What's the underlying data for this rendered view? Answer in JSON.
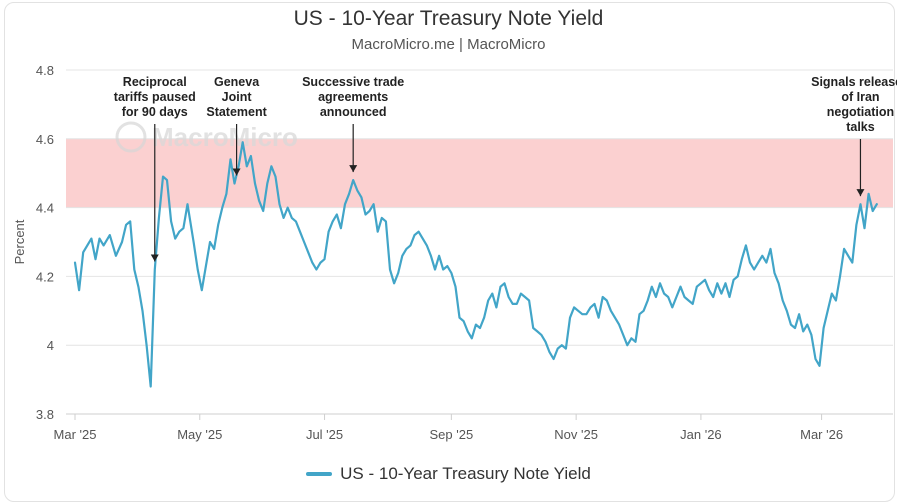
{
  "chart_data": {
    "type": "line",
    "title": "US - 10-Year Treasury Note Yield",
    "subtitle": "MacroMicro.me | MacroMicro",
    "watermark": "MacroMicro",
    "ylabel": "Percent",
    "xlabel": "",
    "ylim": [
      3.8,
      4.8
    ],
    "y_ticks": [
      "3.8",
      "4",
      "4.2",
      "4.4",
      "4.6",
      "4.8"
    ],
    "x_ticks": [
      {
        "label": "Mar '25",
        "date": "2025-03-01"
      },
      {
        "label": "May '25",
        "date": "2025-05-01"
      },
      {
        "label": "Jul '25",
        "date": "2025-07-01"
      },
      {
        "label": "Sep '25",
        "date": "2025-09-01"
      },
      {
        "label": "Nov '25",
        "date": "2025-11-01"
      },
      {
        "label": "Jan '26",
        "date": "2026-01-01"
      },
      {
        "label": "Mar '26",
        "date": "2026-03-01"
      }
    ],
    "xlim": [
      "2025-03-01",
      "2026-04-01"
    ],
    "shaded_band": {
      "from": 4.4,
      "to": 4.6,
      "color": "#fbd0d0"
    },
    "grid": true,
    "legend_position": "bottom",
    "series": [
      {
        "name": "US - 10-Year Treasury Note Yield",
        "color": "#42a5c8",
        "points": [
          [
            "2025-03-01",
            4.24
          ],
          [
            "2025-03-03",
            4.16
          ],
          [
            "2025-03-05",
            4.27
          ],
          [
            "2025-03-07",
            4.29
          ],
          [
            "2025-03-09",
            4.31
          ],
          [
            "2025-03-11",
            4.25
          ],
          [
            "2025-03-13",
            4.31
          ],
          [
            "2025-03-15",
            4.29
          ],
          [
            "2025-03-18",
            4.32
          ],
          [
            "2025-03-21",
            4.26
          ],
          [
            "2025-03-24",
            4.3
          ],
          [
            "2025-03-26",
            4.35
          ],
          [
            "2025-03-28",
            4.36
          ],
          [
            "2025-03-30",
            4.22
          ],
          [
            "2025-04-01",
            4.17
          ],
          [
            "2025-04-03",
            4.1
          ],
          [
            "2025-04-05",
            4.0
          ],
          [
            "2025-04-07",
            3.88
          ],
          [
            "2025-04-09",
            4.22
          ],
          [
            "2025-04-11",
            4.37
          ],
          [
            "2025-04-13",
            4.49
          ],
          [
            "2025-04-15",
            4.48
          ],
          [
            "2025-04-17",
            4.36
          ],
          [
            "2025-04-19",
            4.31
          ],
          [
            "2025-04-21",
            4.33
          ],
          [
            "2025-04-23",
            4.34
          ],
          [
            "2025-04-25",
            4.41
          ],
          [
            "2025-04-28",
            4.3
          ],
          [
            "2025-04-30",
            4.22
          ],
          [
            "2025-05-02",
            4.16
          ],
          [
            "2025-05-04",
            4.23
          ],
          [
            "2025-05-06",
            4.3
          ],
          [
            "2025-05-08",
            4.28
          ],
          [
            "2025-05-10",
            4.35
          ],
          [
            "2025-05-12",
            4.4
          ],
          [
            "2025-05-14",
            4.44
          ],
          [
            "2025-05-16",
            4.54
          ],
          [
            "2025-05-18",
            4.47
          ],
          [
            "2025-05-20",
            4.52
          ],
          [
            "2025-05-22",
            4.59
          ],
          [
            "2025-05-24",
            4.52
          ],
          [
            "2025-05-26",
            4.55
          ],
          [
            "2025-05-28",
            4.47
          ],
          [
            "2025-05-30",
            4.42
          ],
          [
            "2025-06-01",
            4.39
          ],
          [
            "2025-06-03",
            4.47
          ],
          [
            "2025-06-05",
            4.52
          ],
          [
            "2025-06-07",
            4.49
          ],
          [
            "2025-06-09",
            4.41
          ],
          [
            "2025-06-11",
            4.37
          ],
          [
            "2025-06-13",
            4.4
          ],
          [
            "2025-06-15",
            4.37
          ],
          [
            "2025-06-17",
            4.36
          ],
          [
            "2025-06-19",
            4.33
          ],
          [
            "2025-06-21",
            4.3
          ],
          [
            "2025-06-23",
            4.27
          ],
          [
            "2025-06-25",
            4.24
          ],
          [
            "2025-06-27",
            4.22
          ],
          [
            "2025-06-29",
            4.24
          ],
          [
            "2025-07-01",
            4.25
          ],
          [
            "2025-07-03",
            4.33
          ],
          [
            "2025-07-05",
            4.36
          ],
          [
            "2025-07-07",
            4.38
          ],
          [
            "2025-07-09",
            4.34
          ],
          [
            "2025-07-11",
            4.41
          ],
          [
            "2025-07-13",
            4.44
          ],
          [
            "2025-07-15",
            4.48
          ],
          [
            "2025-07-17",
            4.45
          ],
          [
            "2025-07-19",
            4.43
          ],
          [
            "2025-07-21",
            4.38
          ],
          [
            "2025-07-23",
            4.39
          ],
          [
            "2025-07-25",
            4.41
          ],
          [
            "2025-07-27",
            4.33
          ],
          [
            "2025-07-29",
            4.37
          ],
          [
            "2025-07-31",
            4.36
          ],
          [
            "2025-08-02",
            4.22
          ],
          [
            "2025-08-04",
            4.18
          ],
          [
            "2025-08-06",
            4.21
          ],
          [
            "2025-08-08",
            4.26
          ],
          [
            "2025-08-10",
            4.28
          ],
          [
            "2025-08-12",
            4.29
          ],
          [
            "2025-08-14",
            4.32
          ],
          [
            "2025-08-16",
            4.33
          ],
          [
            "2025-08-18",
            4.31
          ],
          [
            "2025-08-20",
            4.29
          ],
          [
            "2025-08-22",
            4.26
          ],
          [
            "2025-08-24",
            4.22
          ],
          [
            "2025-08-26",
            4.26
          ],
          [
            "2025-08-28",
            4.22
          ],
          [
            "2025-08-30",
            4.23
          ],
          [
            "2025-09-01",
            4.21
          ],
          [
            "2025-09-03",
            4.17
          ],
          [
            "2025-09-05",
            4.08
          ],
          [
            "2025-09-07",
            4.07
          ],
          [
            "2025-09-09",
            4.04
          ],
          [
            "2025-09-11",
            4.02
          ],
          [
            "2025-09-13",
            4.06
          ],
          [
            "2025-09-15",
            4.05
          ],
          [
            "2025-09-17",
            4.08
          ],
          [
            "2025-09-19",
            4.13
          ],
          [
            "2025-09-21",
            4.15
          ],
          [
            "2025-09-23",
            4.11
          ],
          [
            "2025-09-25",
            4.17
          ],
          [
            "2025-09-27",
            4.18
          ],
          [
            "2025-09-29",
            4.14
          ],
          [
            "2025-10-01",
            4.12
          ],
          [
            "2025-10-03",
            4.12
          ],
          [
            "2025-10-05",
            4.15
          ],
          [
            "2025-10-07",
            4.14
          ],
          [
            "2025-10-09",
            4.13
          ],
          [
            "2025-10-11",
            4.05
          ],
          [
            "2025-10-13",
            4.04
          ],
          [
            "2025-10-15",
            4.03
          ],
          [
            "2025-10-17",
            4.01
          ],
          [
            "2025-10-19",
            3.98
          ],
          [
            "2025-10-21",
            3.96
          ],
          [
            "2025-10-23",
            3.99
          ],
          [
            "2025-10-25",
            4.0
          ],
          [
            "2025-10-27",
            3.99
          ],
          [
            "2025-10-29",
            4.08
          ],
          [
            "2025-10-31",
            4.11
          ],
          [
            "2025-11-02",
            4.1
          ],
          [
            "2025-11-04",
            4.09
          ],
          [
            "2025-11-06",
            4.09
          ],
          [
            "2025-11-08",
            4.11
          ],
          [
            "2025-11-10",
            4.12
          ],
          [
            "2025-11-12",
            4.08
          ],
          [
            "2025-11-14",
            4.14
          ],
          [
            "2025-11-16",
            4.13
          ],
          [
            "2025-11-18",
            4.1
          ],
          [
            "2025-11-20",
            4.08
          ],
          [
            "2025-11-22",
            4.06
          ],
          [
            "2025-11-24",
            4.03
          ],
          [
            "2025-11-26",
            4.0
          ],
          [
            "2025-11-28",
            4.02
          ],
          [
            "2025-11-30",
            4.01
          ],
          [
            "2025-12-02",
            4.09
          ],
          [
            "2025-12-04",
            4.1
          ],
          [
            "2025-12-06",
            4.13
          ],
          [
            "2025-12-08",
            4.17
          ],
          [
            "2025-12-10",
            4.14
          ],
          [
            "2025-12-12",
            4.18
          ],
          [
            "2025-12-14",
            4.15
          ],
          [
            "2025-12-16",
            4.14
          ],
          [
            "2025-12-18",
            4.11
          ],
          [
            "2025-12-20",
            4.14
          ],
          [
            "2025-12-22",
            4.17
          ],
          [
            "2025-12-24",
            4.14
          ],
          [
            "2025-12-26",
            4.13
          ],
          [
            "2025-12-28",
            4.12
          ],
          [
            "2025-12-30",
            4.17
          ],
          [
            "2026-01-01",
            4.18
          ],
          [
            "2026-01-03",
            4.19
          ],
          [
            "2026-01-05",
            4.16
          ],
          [
            "2026-01-07",
            4.14
          ],
          [
            "2026-01-09",
            4.18
          ],
          [
            "2026-01-11",
            4.15
          ],
          [
            "2026-01-13",
            4.18
          ],
          [
            "2026-01-15",
            4.14
          ],
          [
            "2026-01-17",
            4.19
          ],
          [
            "2026-01-19",
            4.2
          ],
          [
            "2026-01-21",
            4.25
          ],
          [
            "2026-01-23",
            4.29
          ],
          [
            "2026-01-25",
            4.24
          ],
          [
            "2026-01-27",
            4.22
          ],
          [
            "2026-01-29",
            4.24
          ],
          [
            "2026-01-31",
            4.26
          ],
          [
            "2026-02-02",
            4.24
          ],
          [
            "2026-02-04",
            4.28
          ],
          [
            "2026-02-06",
            4.21
          ],
          [
            "2026-02-08",
            4.18
          ],
          [
            "2026-02-10",
            4.13
          ],
          [
            "2026-02-12",
            4.1
          ],
          [
            "2026-02-14",
            4.06
          ],
          [
            "2026-02-16",
            4.05
          ],
          [
            "2026-02-18",
            4.09
          ],
          [
            "2026-02-20",
            4.04
          ],
          [
            "2026-02-22",
            4.06
          ],
          [
            "2026-02-24",
            4.03
          ],
          [
            "2026-02-26",
            3.96
          ],
          [
            "2026-02-28",
            3.94
          ],
          [
            "2026-03-02",
            4.05
          ],
          [
            "2026-03-04",
            4.1
          ],
          [
            "2026-03-06",
            4.15
          ],
          [
            "2026-03-08",
            4.13
          ],
          [
            "2026-03-10",
            4.2
          ],
          [
            "2026-03-12",
            4.28
          ],
          [
            "2026-03-14",
            4.26
          ],
          [
            "2026-03-16",
            4.24
          ],
          [
            "2026-03-18",
            4.35
          ],
          [
            "2026-03-20",
            4.41
          ],
          [
            "2026-03-22",
            4.34
          ],
          [
            "2026-03-24",
            4.44
          ],
          [
            "2026-03-26",
            4.39
          ],
          [
            "2026-03-28",
            4.41
          ]
        ]
      }
    ],
    "annotations": [
      {
        "lines": [
          "Reciprocal",
          "tariffs paused",
          "for 90 days"
        ],
        "date": "2025-04-09"
      },
      {
        "lines": [
          "Geneva",
          "Joint",
          "Statement"
        ],
        "date": "2025-05-19"
      },
      {
        "lines": [
          "Successive trade",
          "agreements",
          "announced"
        ],
        "date": "2025-07-15"
      },
      {
        "lines": [
          "Signals released",
          "of Iran",
          "negotiation",
          "talks"
        ],
        "date": "2026-03-20"
      }
    ],
    "legend": [
      {
        "label": "US - 10-Year Treasury Note Yield",
        "color": "#42a5c8"
      }
    ]
  }
}
